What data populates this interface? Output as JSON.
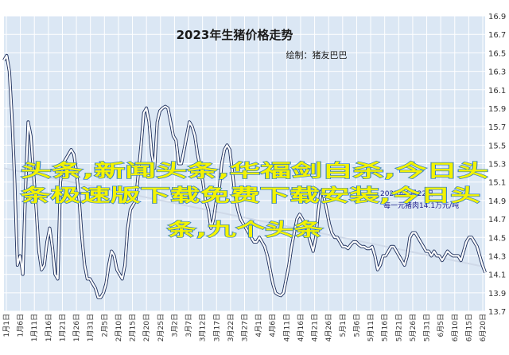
{
  "chart_data": {
    "type": "line",
    "title": "2023年生猪价格走势",
    "subtitle": "绘制：猪友巴巴",
    "ylim": [
      13.7,
      16.9
    ],
    "yticks": [
      13.7,
      13.9,
      14.1,
      14.3,
      14.5,
      14.7,
      14.9,
      15.1,
      15.3,
      15.5,
      15.7,
      15.9,
      16.1,
      16.3,
      16.5,
      16.7,
      16.9
    ],
    "grid": true,
    "xtick_labels": [
      "1月1日",
      "1月6日",
      "1月11日",
      "1月16日",
      "1月21日",
      "1月26日",
      "1月31日",
      "2月5日",
      "2月10日",
      "2月15日",
      "2月20日",
      "2月25日",
      "3月2日",
      "3月7日",
      "3月12日",
      "3月17日",
      "3月22日",
      "3月27日",
      "4月1日",
      "4月6日",
      "4月11日",
      "4月16日",
      "4月21日",
      "4月26日",
      "5月1日",
      "5月6日",
      "5月11日",
      "5月16日",
      "5月21日",
      "5月26日",
      "5月31日",
      "6月5日",
      "6月10日",
      "6月15日",
      "6月20日"
    ],
    "series": [
      {
        "values": [
          16.42,
          16.47,
          16.3,
          15.8,
          15.1,
          14.2,
          14.3,
          14.1,
          15.0,
          15.75,
          15.6,
          15.2,
          14.8,
          14.35,
          14.15,
          14.2,
          14.45,
          14.6,
          14.4,
          14.1,
          14.05,
          15.1,
          15.3,
          15.35,
          15.4,
          15.45,
          15.4,
          15.2,
          14.9,
          14.5,
          14.2,
          14.05,
          14.05,
          14.0,
          13.95,
          13.85,
          13.85,
          13.9,
          14.0,
          14.2,
          14.35,
          14.3,
          14.15,
          14.1,
          14.05,
          14.2,
          14.6,
          14.8,
          14.85,
          14.9,
          15.2,
          15.5,
          15.85,
          15.9,
          15.75,
          15.4,
          15.25,
          15.75,
          15.87,
          15.9,
          15.92,
          15.9,
          15.75,
          15.6,
          15.55,
          15.3,
          15.3,
          15.45,
          15.6,
          15.75,
          15.7,
          15.6,
          15.4,
          15.25,
          15.1,
          14.9,
          14.8,
          14.6,
          14.7,
          14.9,
          15.0,
          15.3,
          15.45,
          15.5,
          15.45,
          15.2,
          14.95,
          14.8,
          14.7,
          14.65,
          14.6,
          14.55,
          14.5,
          14.45,
          14.45,
          14.5,
          14.45,
          14.4,
          14.3,
          14.15,
          14.0,
          13.9,
          13.88,
          13.87,
          13.9,
          14.05,
          14.2,
          14.4,
          14.55,
          14.7,
          14.75,
          14.7,
          14.65,
          14.55,
          14.45,
          14.35,
          14.5,
          14.8,
          15.0,
          14.95,
          14.8,
          14.65,
          14.55,
          14.5,
          14.5,
          14.45,
          14.4,
          14.4,
          14.38,
          14.42,
          14.45,
          14.45,
          14.42,
          14.4,
          14.4,
          14.38,
          14.38,
          14.4,
          14.3,
          14.15,
          14.2,
          14.3,
          14.3,
          14.35,
          14.4,
          14.4,
          14.35,
          14.3,
          14.25,
          14.2,
          14.3,
          14.5,
          14.55,
          14.55,
          14.5,
          14.45,
          14.4,
          14.35,
          14.35,
          14.3,
          14.35,
          14.3,
          14.3,
          14.25,
          14.3,
          14.35,
          14.32,
          14.3,
          14.3,
          14.3,
          14.25,
          14.35,
          14.45,
          14.5,
          14.5,
          14.45,
          14.4,
          14.3,
          14.2,
          14.12
        ]
      }
    ],
    "trend": {
      "start": 15.25,
      "end": 14.18
    }
  },
  "colors": {
    "plot_bg": "#dbe7f4",
    "line": "#ffffff",
    "line_outline": "#1b2d5b",
    "trend": "#cfd9e8"
  },
  "watermark": {
    "lines": [
      "头条,新闻头条,华福剑自杀,今日头",
      "条极速版下载免费下载安装,今日头",
      "条,九个头条"
    ]
  },
  "annotation": {
    "lines": [
      "2023年6月22日",
      "每一元猪肉14.1万元/吨"
    ]
  }
}
